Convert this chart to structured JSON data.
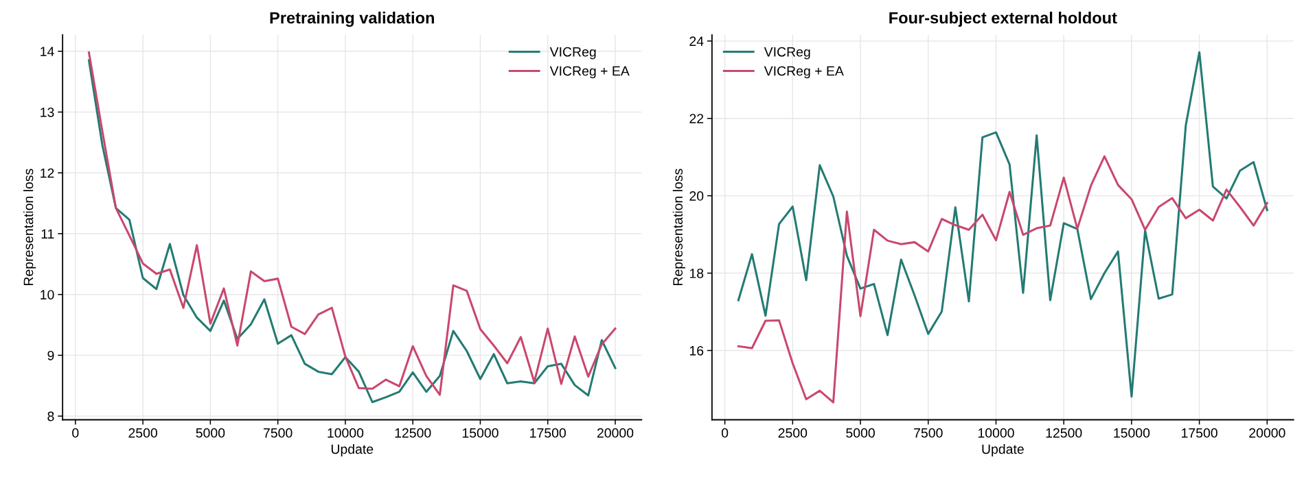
{
  "chart_data": [
    {
      "type": "line",
      "title": "Pretraining validation",
      "xlabel": "Update",
      "ylabel": "Representation loss",
      "x": [
        500,
        1000,
        1500,
        2000,
        2500,
        3000,
        3500,
        4000,
        4500,
        5000,
        5500,
        6000,
        6500,
        7000,
        7500,
        8000,
        8500,
        9000,
        9500,
        10000,
        10500,
        11000,
        11500,
        12000,
        12500,
        13000,
        13500,
        14000,
        14500,
        15000,
        15500,
        16000,
        16500,
        17000,
        17500,
        18000,
        18500,
        19000,
        19500,
        20000
      ],
      "series": [
        {
          "name": "VICReg",
          "color": "#237b73",
          "values": [
            13.85,
            12.45,
            11.42,
            11.23,
            10.27,
            10.09,
            10.83,
            9.99,
            9.62,
            9.4,
            9.9,
            9.27,
            9.51,
            9.92,
            9.19,
            9.33,
            8.86,
            8.73,
            8.69,
            8.97,
            8.73,
            8.23,
            8.31,
            8.4,
            8.72,
            8.4,
            8.66,
            9.4,
            9.07,
            8.61,
            9.02,
            8.54,
            8.57,
            8.54,
            8.82,
            8.86,
            8.51,
            8.34,
            9.25,
            8.79
          ]
        },
        {
          "name": "VICReg + EA",
          "color": "#c9486d",
          "values": [
            13.98,
            12.68,
            11.42,
            10.97,
            10.51,
            10.34,
            10.41,
            9.78,
            10.81,
            9.52,
            10.1,
            9.16,
            10.38,
            10.22,
            10.26,
            9.47,
            9.35,
            9.67,
            9.78,
            8.98,
            8.46,
            8.45,
            8.6,
            8.49,
            9.15,
            8.66,
            8.35,
            10.15,
            10.06,
            9.43,
            9.16,
            8.87,
            9.3,
            8.56,
            9.44,
            8.53,
            9.31,
            8.65,
            9.18,
            9.44
          ]
        }
      ],
      "xlim": [
        -475,
        20975
      ],
      "ylim": [
        7.94,
        14.27
      ],
      "xticks": [
        0,
        2500,
        5000,
        7500,
        10000,
        12500,
        15000,
        17500,
        20000
      ],
      "yticks": [
        8,
        9,
        10,
        11,
        12,
        13,
        14
      ],
      "grid": true,
      "legend": "top right",
      "line_style": "solid",
      "marker": "none"
    },
    {
      "type": "line",
      "title": "Four-subject external holdout",
      "xlabel": "Update",
      "ylabel": "Representation loss",
      "x": [
        500,
        1000,
        1500,
        2000,
        2500,
        3000,
        3500,
        4000,
        4500,
        5000,
        5500,
        6000,
        6500,
        7000,
        7500,
        8000,
        8500,
        9000,
        9500,
        10000,
        10500,
        11000,
        11500,
        12000,
        12500,
        13000,
        13500,
        14000,
        14500,
        15000,
        15500,
        16000,
        16500,
        17000,
        17500,
        18000,
        18500,
        19000,
        19500,
        20000
      ],
      "series": [
        {
          "name": "VICReg",
          "color": "#237b73",
          "values": [
            17.3,
            18.49,
            16.9,
            19.27,
            19.72,
            17.82,
            20.79,
            19.98,
            18.45,
            17.6,
            17.72,
            16.4,
            18.35,
            17.42,
            16.43,
            17.01,
            19.7,
            17.27,
            21.51,
            21.64,
            20.81,
            17.49,
            21.56,
            17.3,
            19.29,
            19.14,
            17.33,
            18.0,
            18.56,
            14.81,
            19.1,
            17.34,
            17.45,
            21.82,
            23.71,
            20.24,
            19.93,
            20.65,
            20.87,
            19.63
          ]
        },
        {
          "name": "VICReg + EA",
          "color": "#c9486d",
          "values": [
            16.11,
            16.06,
            16.77,
            16.78,
            15.67,
            14.74,
            14.96,
            14.66,
            19.59,
            16.89,
            19.12,
            18.84,
            18.75,
            18.8,
            18.56,
            19.4,
            19.24,
            19.12,
            19.51,
            18.85,
            20.1,
            18.99,
            19.16,
            19.23,
            20.47,
            19.15,
            20.26,
            21.02,
            20.28,
            19.91,
            19.12,
            19.71,
            19.94,
            19.42,
            19.64,
            19.36,
            20.16,
            19.71,
            19.23,
            19.81
          ]
        }
      ],
      "xlim": [
        -475,
        20975
      ],
      "ylim": [
        14.21,
        24.16
      ],
      "xticks": [
        0,
        2500,
        5000,
        7500,
        10000,
        12500,
        15000,
        17500,
        20000
      ],
      "yticks": [
        16,
        18,
        20,
        22,
        24
      ],
      "grid": true,
      "legend": "top left",
      "line_style": "solid",
      "marker": "none"
    }
  ]
}
